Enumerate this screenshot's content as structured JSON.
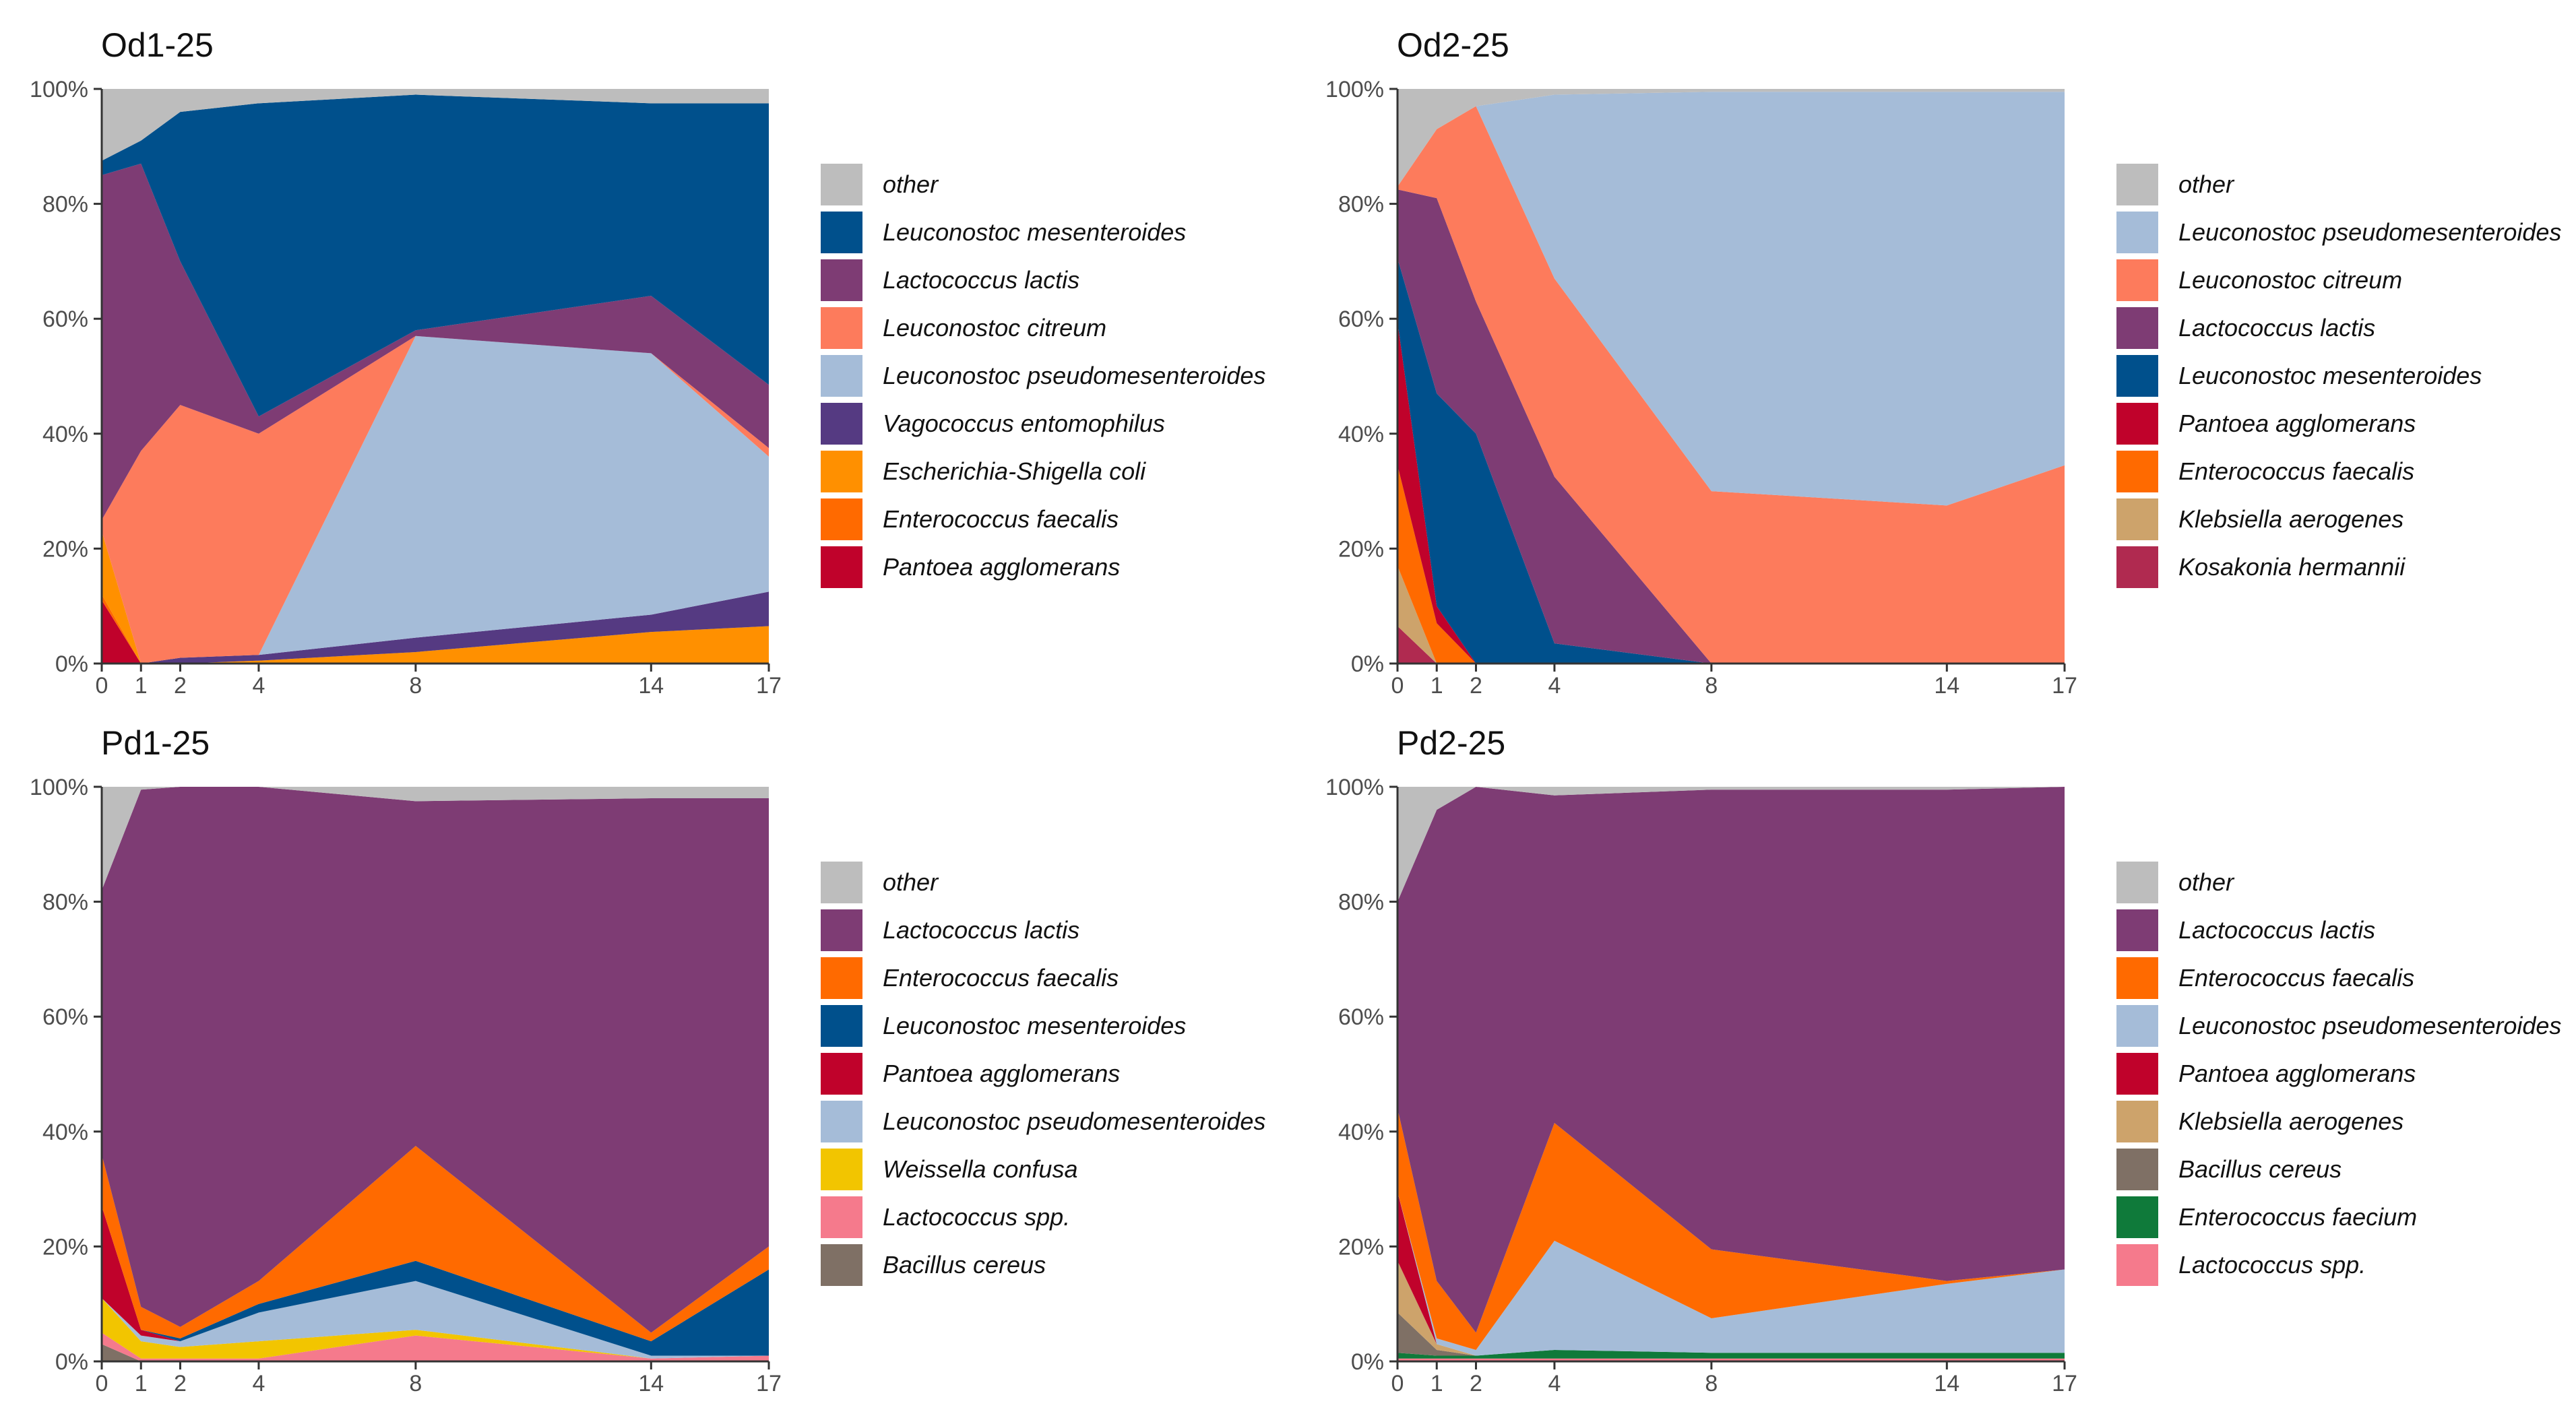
{
  "chart_data": [
    {
      "type": "area",
      "stacked": true,
      "title": "Od1-25",
      "x": [
        0,
        1,
        2,
        4,
        8,
        14,
        17
      ],
      "x_tick_labels": [
        "0",
        "1",
        "2",
        "4",
        "8",
        "14",
        "17"
      ],
      "y_tick_labels": [
        "0%",
        "20%",
        "40%",
        "60%",
        "80%",
        "100%"
      ],
      "ylim": [
        0,
        100
      ],
      "xlabel": "",
      "ylabel": "",
      "legend_position": "right",
      "legend": [
        "other",
        "Leuconostoc mesenteroides",
        "Lactococcus lactis",
        "Leuconostoc citreum",
        "Leuconostoc pseudomesenteroides",
        "Vagococcus entomophilus",
        "Escherichia-Shigella coli",
        "Enterococcus faecalis",
        "Pantoea agglomerans"
      ],
      "series": [
        {
          "name": "Pantoea agglomerans",
          "color": "#c0022b",
          "values": [
            11,
            0,
            0,
            0,
            0,
            0,
            0
          ]
        },
        {
          "name": "Enterococcus faecalis",
          "color": "#ff6a00",
          "values": [
            1,
            0,
            0,
            0,
            0,
            0,
            0
          ]
        },
        {
          "name": "Escherichia-Shigella coli",
          "color": "#ff9000",
          "values": [
            11,
            0,
            0,
            0.5,
            2,
            5.5,
            6.5
          ]
        },
        {
          "name": "Vagococcus entomophilus",
          "color": "#553a82",
          "values": [
            0,
            0,
            1,
            1,
            2.5,
            3,
            6
          ]
        },
        {
          "name": "Leuconostoc pseudomesenteroides",
          "color": "#a5bcd8",
          "values": [
            0,
            0,
            0,
            0,
            52.5,
            45.5,
            23.5
          ]
        },
        {
          "name": "Leuconostoc citreum",
          "color": "#fd7b5c",
          "values": [
            2,
            37,
            44,
            38.5,
            0,
            0,
            1.5
          ]
        },
        {
          "name": "Lactococcus lactis",
          "color": "#7e3c74",
          "values": [
            60,
            50,
            25,
            3,
            1,
            10,
            11
          ]
        },
        {
          "name": "Leuconostoc mesenteroides",
          "color": "#00508c",
          "values": [
            2.5,
            4,
            26,
            54.5,
            41,
            33.5,
            49
          ]
        },
        {
          "name": "other",
          "color": "#bdbdbd",
          "values": [
            12.5,
            9,
            4,
            2.5,
            1,
            2.5,
            2.5
          ]
        }
      ]
    },
    {
      "type": "area",
      "stacked": true,
      "title": "Od2-25",
      "x": [
        0,
        1,
        2,
        4,
        8,
        14,
        17
      ],
      "x_tick_labels": [
        "0",
        "1",
        "2",
        "4",
        "8",
        "14",
        "17"
      ],
      "y_tick_labels": [
        "0%",
        "20%",
        "40%",
        "60%",
        "80%",
        "100%"
      ],
      "ylim": [
        0,
        100
      ],
      "xlabel": "",
      "ylabel": "",
      "legend_position": "right",
      "legend": [
        "other",
        "Leuconostoc pseudomesenteroides",
        "Leuconostoc citreum",
        "Lactococcus lactis",
        "Leuconostoc mesenteroides",
        "Pantoea agglomerans",
        "Enterococcus faecalis",
        "Klebsiella aerogenes",
        "Kosakonia hermannii"
      ],
      "series": [
        {
          "name": "Kosakonia hermannii",
          "color": "#b02a50",
          "values": [
            6.5,
            0,
            0,
            0,
            0,
            0,
            0
          ]
        },
        {
          "name": "Klebsiella aerogenes",
          "color": "#cda36b",
          "values": [
            10.5,
            0,
            0,
            0,
            0,
            0,
            0
          ]
        },
        {
          "name": "Enterococcus faecalis",
          "color": "#ff6a00",
          "values": [
            17.5,
            7,
            0,
            0,
            0,
            0,
            0
          ]
        },
        {
          "name": "Pantoea agglomerans",
          "color": "#c0022b",
          "values": [
            25,
            3,
            0,
            0,
            0,
            0,
            0
          ]
        },
        {
          "name": "Leuconostoc mesenteroides",
          "color": "#00508c",
          "values": [
            11,
            37,
            40,
            3.5,
            0,
            0,
            0
          ]
        },
        {
          "name": "Lactococcus lactis",
          "color": "#7e3c74",
          "values": [
            12,
            34,
            23,
            29,
            0,
            0,
            0
          ]
        },
        {
          "name": "Leuconostoc citreum",
          "color": "#fd7b5c",
          "values": [
            0.5,
            12,
            34,
            34.5,
            30,
            27.5,
            34.5
          ]
        },
        {
          "name": "Leuconostoc pseudomesenteroides",
          "color": "#a5bcd8",
          "values": [
            0,
            0,
            0,
            32,
            69.5,
            72,
            65
          ]
        },
        {
          "name": "other",
          "color": "#bdbdbd",
          "values": [
            17,
            7,
            3,
            1,
            0.5,
            0.5,
            0.5
          ]
        }
      ]
    },
    {
      "type": "area",
      "stacked": true,
      "title": "Pd1-25",
      "x": [
        0,
        1,
        2,
        4,
        8,
        14,
        17
      ],
      "x_tick_labels": [
        "0",
        "1",
        "2",
        "4",
        "8",
        "14",
        "17"
      ],
      "y_tick_labels": [
        "0%",
        "20%",
        "40%",
        "60%",
        "80%",
        "100%"
      ],
      "ylim": [
        0,
        100
      ],
      "xlabel": "",
      "ylabel": "",
      "legend_position": "right",
      "legend": [
        "other",
        "Lactococcus lactis",
        "Enterococcus faecalis",
        "Leuconostoc mesenteroides",
        "Pantoea agglomerans",
        "Leuconostoc pseudomesenteroides",
        "Weissella confusa",
        "Lactococcus spp.",
        "Bacillus cereus"
      ],
      "series": [
        {
          "name": "Bacillus cereus",
          "color": "#7f7065",
          "values": [
            3,
            0,
            0,
            0,
            0,
            0,
            0
          ]
        },
        {
          "name": "Lactococcus spp.",
          "color": "#f57a8c",
          "values": [
            2,
            0.5,
            0.5,
            0.5,
            4.5,
            0.5,
            1
          ]
        },
        {
          "name": "Weissella confusa",
          "color": "#f2c500",
          "values": [
            6,
            3,
            2,
            3,
            1,
            0,
            0
          ]
        },
        {
          "name": "Leuconostoc pseudomesenteroides",
          "color": "#a5bcd8",
          "values": [
            0,
            1,
            1,
            5,
            8.5,
            0.5,
            0
          ]
        },
        {
          "name": "Pantoea agglomerans",
          "color": "#c0022b",
          "values": [
            16,
            1,
            0,
            0,
            0,
            0,
            0
          ]
        },
        {
          "name": "Leuconostoc mesenteroides",
          "color": "#00508c",
          "values": [
            0,
            0,
            0.5,
            1.5,
            3.5,
            2.5,
            15
          ]
        },
        {
          "name": "Enterococcus faecalis",
          "color": "#ff6a00",
          "values": [
            9,
            4,
            2,
            4,
            20,
            1.5,
            4
          ]
        },
        {
          "name": "Lactococcus lactis",
          "color": "#7e3c74",
          "values": [
            46,
            90,
            94,
            86,
            60,
            93,
            78
          ]
        },
        {
          "name": "other",
          "color": "#bdbdbd",
          "values": [
            18,
            0.5,
            0,
            0,
            2.5,
            2,
            2
          ]
        }
      ]
    },
    {
      "type": "area",
      "stacked": true,
      "title": "Pd2-25",
      "x": [
        0,
        1,
        2,
        4,
        8,
        14,
        17
      ],
      "x_tick_labels": [
        "0",
        "1",
        "2",
        "4",
        "8",
        "14",
        "17"
      ],
      "y_tick_labels": [
        "0%",
        "20%",
        "40%",
        "60%",
        "80%",
        "100%"
      ],
      "ylim": [
        0,
        100
      ],
      "xlabel": "",
      "ylabel": "",
      "legend_position": "right",
      "legend": [
        "other",
        "Lactococcus lactis",
        "Enterococcus faecalis",
        "Leuconostoc pseudomesenteroides",
        "Pantoea agglomerans",
        "Klebsiella aerogenes",
        "Bacillus cereus",
        "Enterococcus faecium",
        "Lactococcus spp."
      ],
      "series": [
        {
          "name": "Lactococcus spp.",
          "color": "#f57a8c",
          "values": [
            0.5,
            0.5,
            0.5,
            0.5,
            0.5,
            0.5,
            0.5
          ]
        },
        {
          "name": "Enterococcus faecium",
          "color": "#0f7a3a",
          "values": [
            1,
            0.5,
            0.5,
            1.5,
            1,
            1,
            1
          ]
        },
        {
          "name": "Bacillus cereus",
          "color": "#7f7065",
          "values": [
            7,
            1,
            0,
            0,
            0,
            0,
            0
          ]
        },
        {
          "name": "Klebsiella aerogenes",
          "color": "#cda36b",
          "values": [
            9,
            1,
            0,
            0,
            0,
            0,
            0
          ]
        },
        {
          "name": "Pantoea agglomerans",
          "color": "#c0022b",
          "values": [
            12,
            0,
            0,
            0,
            0,
            0,
            0
          ]
        },
        {
          "name": "Leuconostoc pseudomesenteroides",
          "color": "#a5bcd8",
          "values": [
            0,
            1,
            1,
            19,
            6,
            12,
            14.5
          ]
        },
        {
          "name": "Enterococcus faecalis",
          "color": "#ff6a00",
          "values": [
            14.5,
            10,
            3,
            20.5,
            12,
            0.5,
            0
          ]
        },
        {
          "name": "Lactococcus lactis",
          "color": "#7e3c74",
          "values": [
            36,
            82,
            95,
            57,
            80,
            85.5,
            84
          ]
        },
        {
          "name": "other",
          "color": "#bdbdbd",
          "values": [
            20,
            4,
            0,
            1.5,
            0.5,
            0.5,
            0
          ]
        }
      ]
    }
  ]
}
